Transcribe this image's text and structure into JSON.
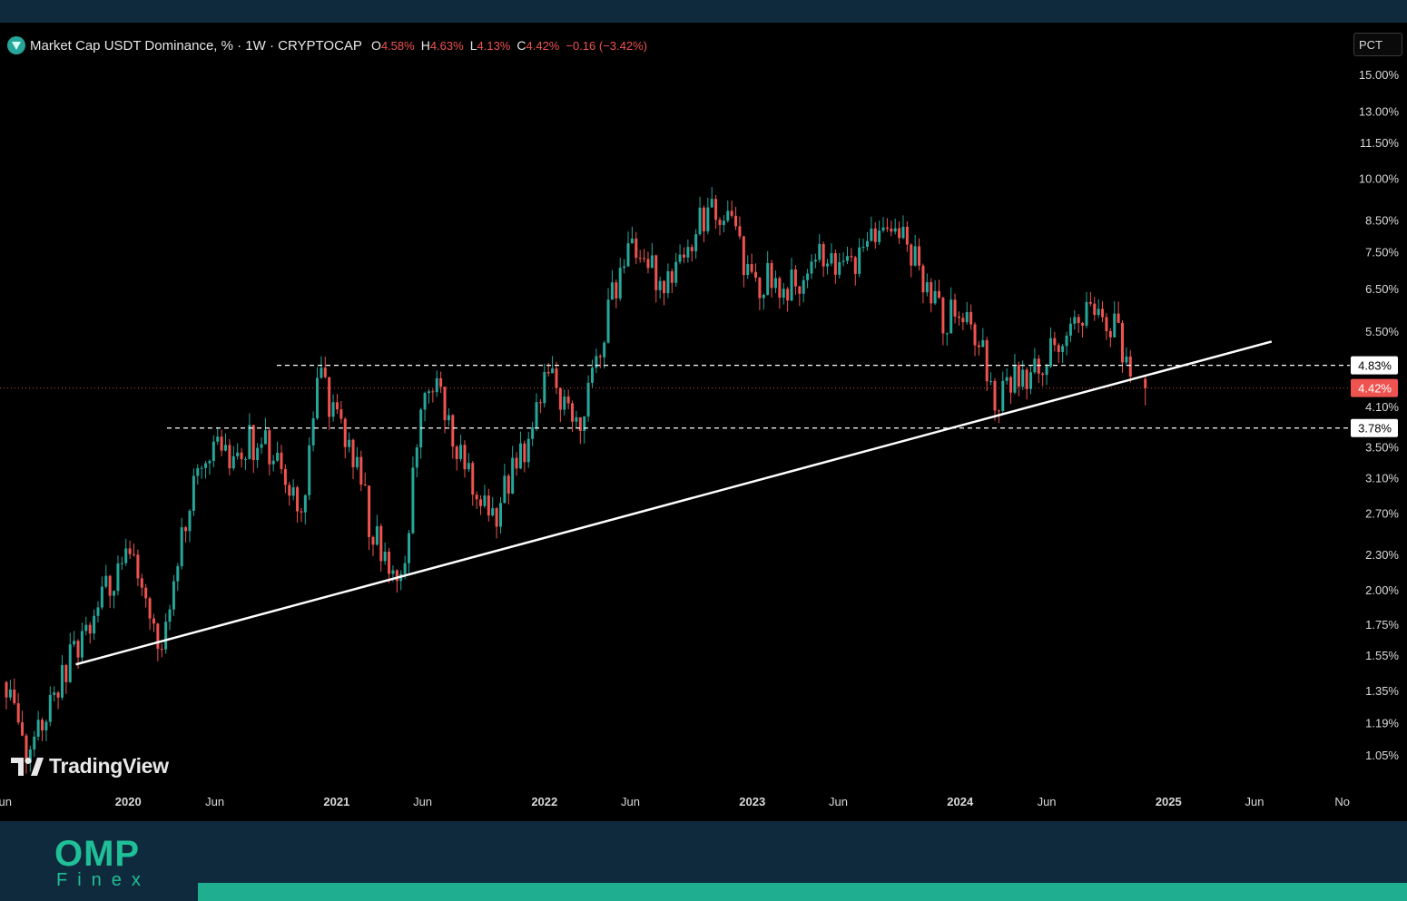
{
  "header": {
    "symbol_title": "Market Cap USDT Dominance, % · 1W · CRYPTOCAP",
    "ohlc": {
      "o_label": "O",
      "o_value": "4.58%",
      "h_label": "H",
      "h_value": "4.63%",
      "l_label": "L",
      "l_value": "4.13%",
      "c_label": "C",
      "c_value": "4.42%",
      "change": "−0.16 (−3.42%)"
    },
    "scale_button": "PCT"
  },
  "branding": {
    "tv_logo_text": "TradingView",
    "omp_logo": "OMP",
    "finex_logo": "Finex"
  },
  "colors": {
    "up": "#26a69a",
    "down": "#ef5350",
    "background": "#000000",
    "footer": "#0f2a3d",
    "accent": "#1fae90",
    "trendline": "#ffffff"
  },
  "chart_data": {
    "type": "candlestick",
    "title": "Market Cap USDT Dominance, % · 1W · CRYPTOCAP",
    "y_scale": "log",
    "ylim": [
      0.95,
      16.0
    ],
    "xlim": [
      "2019-06-01",
      "2025-11-01"
    ],
    "y_ticks": [
      "15.00%",
      "13.00%",
      "11.50%",
      "10.00%",
      "8.50%",
      "7.50%",
      "6.50%",
      "5.50%",
      "4.10%",
      "3.50%",
      "3.10%",
      "2.70%",
      "2.30%",
      "2.00%",
      "1.75%",
      "1.55%",
      "1.35%",
      "1.19%",
      "1.05%"
    ],
    "x_ticks": [
      {
        "label": "Jun",
        "date": "2019-06-01"
      },
      {
        "label": "2020",
        "date": "2020-01-01"
      },
      {
        "label": "Jun",
        "date": "2020-06-01"
      },
      {
        "label": "2021",
        "date": "2021-01-01"
      },
      {
        "label": "Jun",
        "date": "2021-06-01"
      },
      {
        "label": "2022",
        "date": "2022-01-01"
      },
      {
        "label": "Jun",
        "date": "2022-06-01"
      },
      {
        "label": "2023",
        "date": "2023-01-01"
      },
      {
        "label": "Jun",
        "date": "2023-06-01"
      },
      {
        "label": "2024",
        "date": "2024-01-01"
      },
      {
        "label": "Jun",
        "date": "2024-06-01"
      },
      {
        "label": "2025",
        "date": "2025-01-01"
      },
      {
        "label": "Jun",
        "date": "2025-06-01"
      },
      {
        "label": "No",
        "date": "2025-11-01"
      }
    ],
    "horizontal_lines": [
      {
        "value": 4.83,
        "label": "4.83%",
        "style": "dashed"
      },
      {
        "value": 3.78,
        "label": "3.78%",
        "style": "dashed"
      },
      {
        "value": 4.42,
        "label": "4.42%",
        "style": "dotted",
        "current_price": true
      }
    ],
    "trendline": {
      "from": {
        "date": "2019-10-01",
        "value": 1.5
      },
      "to": {
        "date": "2025-07-01",
        "value": 5.3
      }
    },
    "closes": [
      [
        "2019-06-01",
        1.4
      ],
      [
        "2019-07-01",
        1.05
      ],
      [
        "2019-08-01",
        1.2
      ],
      [
        "2019-09-01",
        1.4
      ],
      [
        "2019-10-01",
        1.6
      ],
      [
        "2019-11-01",
        1.8
      ],
      [
        "2019-12-01",
        2.1
      ],
      [
        "2020-01-01",
        2.3
      ],
      [
        "2020-02-01",
        2.0
      ],
      [
        "2020-03-01",
        1.6
      ],
      [
        "2020-04-01",
        2.4
      ],
      [
        "2020-05-01",
        3.3
      ],
      [
        "2020-06-01",
        3.6
      ],
      [
        "2020-07-01",
        3.2
      ],
      [
        "2020-08-01",
        3.6
      ],
      [
        "2020-09-01",
        3.5
      ],
      [
        "2020-10-01",
        3.1
      ],
      [
        "2020-11-01",
        2.8
      ],
      [
        "2020-12-01",
        4.6
      ],
      [
        "2021-01-01",
        4.0
      ],
      [
        "2021-02-01",
        3.4
      ],
      [
        "2021-03-01",
        2.6
      ],
      [
        "2021-04-01",
        2.2
      ],
      [
        "2021-05-01",
        2.2
      ],
      [
        "2021-06-01",
        4.6
      ],
      [
        "2021-07-01",
        4.5
      ],
      [
        "2021-08-01",
        3.5
      ],
      [
        "2021-09-01",
        3.0
      ],
      [
        "2021-10-01",
        2.6
      ],
      [
        "2021-11-01",
        3.1
      ],
      [
        "2021-12-01",
        3.5
      ],
      [
        "2022-01-01",
        4.6
      ],
      [
        "2022-02-01",
        4.3
      ],
      [
        "2022-03-01",
        3.9
      ],
      [
        "2022-04-01",
        4.9
      ],
      [
        "2022-05-01",
        6.3
      ],
      [
        "2022-06-01",
        7.5
      ],
      [
        "2022-07-01",
        7.0
      ],
      [
        "2022-08-01",
        6.8
      ],
      [
        "2022-09-01",
        7.2
      ],
      [
        "2022-10-01",
        8.5
      ],
      [
        "2022-11-01",
        8.8
      ],
      [
        "2022-12-01",
        8.2
      ],
      [
        "2023-01-01",
        6.6
      ],
      [
        "2023-02-01",
        6.8
      ],
      [
        "2023-03-01",
        6.5
      ],
      [
        "2023-04-01",
        6.9
      ],
      [
        "2023-05-01",
        7.5
      ],
      [
        "2023-06-01",
        7.0
      ],
      [
        "2023-07-01",
        7.3
      ],
      [
        "2023-08-01",
        7.8
      ],
      [
        "2023-09-01",
        8.0
      ],
      [
        "2023-10-01",
        7.8
      ],
      [
        "2023-11-01",
        6.6
      ],
      [
        "2023-12-01",
        5.8
      ],
      [
        "2024-01-01",
        5.9
      ],
      [
        "2024-02-01",
        5.4
      ],
      [
        "2024-03-01",
        4.2
      ],
      [
        "2024-04-01",
        4.6
      ],
      [
        "2024-05-01",
        4.6
      ],
      [
        "2024-06-01",
        5.0
      ],
      [
        "2024-07-01",
        5.5
      ],
      [
        "2024-08-01",
        6.0
      ],
      [
        "2024-09-01",
        5.8
      ],
      [
        "2024-10-01",
        5.5
      ],
      [
        "2024-11-01",
        4.42
      ]
    ],
    "last_candle": {
      "date": "2024-11-18",
      "open": 4.58,
      "high": 4.63,
      "low": 4.13,
      "close": 4.42
    }
  }
}
